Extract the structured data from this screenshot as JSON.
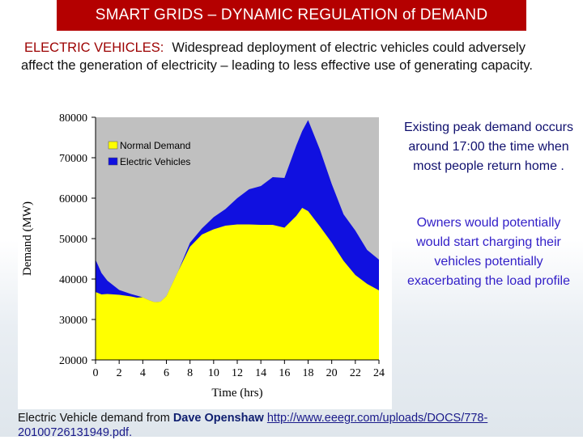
{
  "header": {
    "title": "SMART GRIDS – DYNAMIC REGULATION of DEMAND"
  },
  "intro": {
    "lead": "ELECTRIC VEHICLES:",
    "body": "Widespread deployment of electric vehicles could adversely affect the generation of electricity – leading to less effective use of generating capacity."
  },
  "side_notes": {
    "peak": "Existing peak demand occurs around 17:00 the time when most people return home .",
    "owners": "Owners would potentially would start charging their vehicles potentially exacerbating the load profile"
  },
  "credit": {
    "prefix": "Electric Vehicle demand from",
    "author": "Dave Openshaw",
    "link_line1": "http://www.eeegr.com/uploads/DOCS/778-",
    "link_line2": "20100726131949.pdf."
  },
  "chart_data": {
    "type": "area",
    "xlabel": "Time (hrs)",
    "ylabel": "Demand (MW)",
    "xlim": [
      0,
      24
    ],
    "ylim": [
      20000,
      80000
    ],
    "x_ticks": [
      "0",
      "2",
      "4",
      "6",
      "8",
      "10",
      "12",
      "14",
      "16",
      "18",
      "20",
      "22",
      "24"
    ],
    "y_ticks": [
      "20000",
      "30000",
      "40000",
      "50000",
      "60000",
      "70000",
      "80000"
    ],
    "legend_position": "upper-left-inside",
    "grid": false,
    "x": [
      0,
      0.5,
      1,
      2,
      3,
      3.5,
      4,
      4.5,
      5,
      5.5,
      6,
      7,
      8,
      9,
      10,
      11,
      12,
      13,
      14,
      15,
      16,
      17,
      17.5,
      18,
      19,
      20,
      21,
      22,
      23,
      24
    ],
    "series": [
      {
        "name": "Normal Demand",
        "color": "#ffff00",
        "values": [
          36800,
          36200,
          36300,
          36100,
          35700,
          35400,
          35500,
          34800,
          34300,
          34400,
          35800,
          42000,
          48000,
          51000,
          52300,
          53200,
          53500,
          53500,
          53400,
          53400,
          52700,
          55600,
          57600,
          56800,
          53000,
          49000,
          44500,
          41000,
          38800,
          37200
        ]
      },
      {
        "name": "Electric Vehicles",
        "color": "#1010e0",
        "values": [
          44800,
          41500,
          39600,
          37300,
          36300,
          35900,
          35500,
          34800,
          34300,
          34400,
          35800,
          42000,
          49000,
          52500,
          55300,
          57300,
          60000,
          62200,
          63000,
          65200,
          65000,
          73000,
          76600,
          79300,
          72000,
          63500,
          56000,
          52000,
          47200,
          44800
        ]
      }
    ]
  }
}
